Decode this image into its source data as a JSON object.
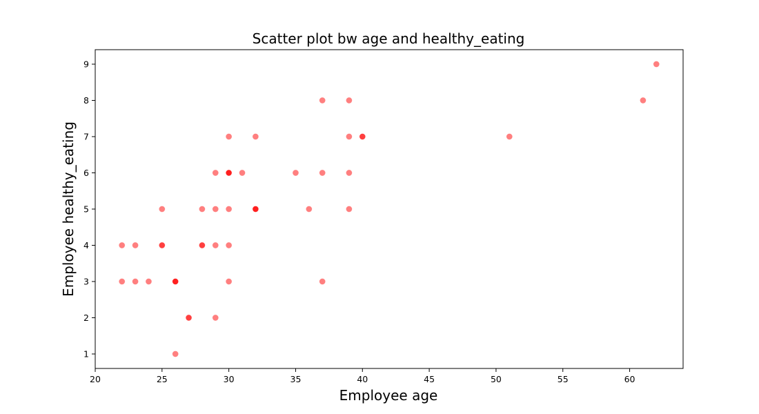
{
  "chart_data": {
    "type": "scatter",
    "title": "Scatter plot bw age and healthy_eating",
    "xlabel": "Employee age",
    "ylabel": "Employee healthy_eating",
    "xlim": [
      20,
      64
    ],
    "ylim": [
      0.6,
      9.4
    ],
    "xticks": [
      "20",
      "25",
      "30",
      "35",
      "40",
      "45",
      "50",
      "55",
      "60"
    ],
    "yticks": [
      "1",
      "2",
      "3",
      "4",
      "5",
      "6",
      "7",
      "8",
      "9"
    ],
    "grid": false,
    "marker_color": "#ff0000",
    "marker_alpha": 0.5,
    "series": [
      {
        "points": [
          [
            22,
            3
          ],
          [
            22,
            4
          ],
          [
            23,
            3
          ],
          [
            23,
            4
          ],
          [
            24,
            3
          ],
          [
            25,
            4
          ],
          [
            25,
            4
          ],
          [
            25,
            5
          ],
          [
            26,
            1
          ],
          [
            26,
            3
          ],
          [
            26,
            3
          ],
          [
            26,
            3
          ],
          [
            27,
            2
          ],
          [
            27,
            2
          ],
          [
            28,
            4
          ],
          [
            28,
            4
          ],
          [
            28,
            5
          ],
          [
            29,
            2
          ],
          [
            29,
            4
          ],
          [
            29,
            5
          ],
          [
            29,
            6
          ],
          [
            30,
            3
          ],
          [
            30,
            4
          ],
          [
            30,
            5
          ],
          [
            30,
            6
          ],
          [
            30,
            6
          ],
          [
            30,
            6
          ],
          [
            30,
            7
          ],
          [
            31,
            6
          ],
          [
            32,
            5
          ],
          [
            32,
            5
          ],
          [
            32,
            5
          ],
          [
            32,
            7
          ],
          [
            35,
            6
          ],
          [
            36,
            5
          ],
          [
            37,
            3
          ],
          [
            37,
            6
          ],
          [
            37,
            8
          ],
          [
            39,
            5
          ],
          [
            39,
            6
          ],
          [
            39,
            7
          ],
          [
            39,
            8
          ],
          [
            40,
            7
          ],
          [
            40,
            7
          ],
          [
            51,
            7
          ],
          [
            61,
            8
          ],
          [
            62,
            9
          ]
        ]
      }
    ]
  }
}
